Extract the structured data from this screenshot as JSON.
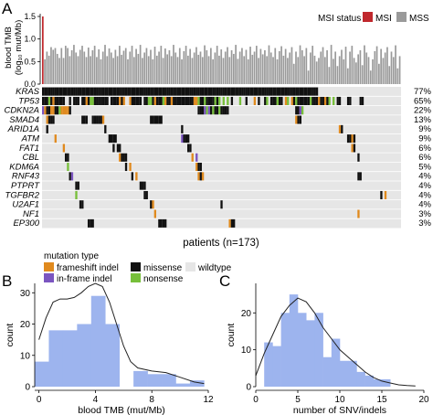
{
  "panel_a": {
    "letter": "A",
    "tmb_ylabel": "blood TMB",
    "tmb_ylabel2": "(log₁₀ mut/Mb)",
    "msi_legend": {
      "title": "MSI status",
      "msi_label": "MSI",
      "mss_label": "MSS"
    },
    "patients_label": "patients (n=173)",
    "legend_title": "mutation type",
    "legend_items": [
      {
        "label": "frameshift indel",
        "color": "#e08a1e"
      },
      {
        "label": "missense",
        "color": "#111111"
      },
      {
        "label": "wildtype",
        "color": "#e6e6e6"
      },
      {
        "label": "in-frame indel",
        "color": "#7b55c0"
      },
      {
        "label": "nonsense",
        "color": "#77bf3a"
      }
    ],
    "colors": {
      "msi": "#c0282d",
      "mss": "#9a9a9a",
      "wildtype": "#e6e6e6",
      "missense": "#111111",
      "frameshift": "#e08a1e",
      "inframe": "#7b55c0",
      "nonsense": "#77bf3a"
    }
  },
  "panel_b": {
    "letter": "B"
  },
  "panel_c": {
    "letter": "C"
  },
  "chart_data": [
    {
      "type": "bar",
      "title": "",
      "xlabel": "",
      "ylabel": "blood TMB (log₁₀ mut/Mb)",
      "ylim": [
        0,
        1.5
      ],
      "yticks": [
        "0.0",
        "0.5",
        "1.0",
        "1.5"
      ],
      "n": 173,
      "msi_count": 1,
      "values": [
        1.5,
        0.55,
        0.72,
        0.63,
        0.82,
        0.76,
        0.8,
        0.67,
        0.58,
        0.8,
        0.58,
        0.85,
        0.8,
        0.62,
        0.75,
        0.87,
        0.7,
        0.62,
        0.76,
        0.85,
        0.72,
        0.6,
        0.81,
        0.62,
        0.75,
        0.85,
        0.6,
        0.77,
        0.55,
        0.72,
        0.87,
        0.62,
        0.79,
        0.7,
        0.58,
        0.76,
        0.62,
        0.85,
        0.65,
        0.74,
        0.8,
        0.55,
        0.72,
        0.85,
        0.6,
        0.78,
        0.67,
        0.87,
        0.58,
        0.7,
        0.8,
        0.62,
        0.76,
        0.55,
        0.83,
        0.63,
        0.72,
        0.85,
        0.58,
        0.79,
        0.66,
        0.75,
        0.62,
        0.87,
        0.7,
        0.6,
        0.8,
        0.55,
        0.73,
        0.85,
        0.63,
        0.78,
        0.58,
        0.7,
        0.82,
        0.65,
        0.72,
        0.6,
        0.86,
        0.75,
        0.62,
        0.8,
        0.55,
        0.7,
        0.85,
        0.63,
        0.77,
        0.58,
        0.72,
        0.82,
        0.6,
        0.75,
        0.67,
        0.87,
        0.56,
        0.72,
        0.8,
        0.62,
        0.76,
        0.55,
        0.83,
        0.65,
        0.72,
        0.85,
        0.58,
        0.78,
        0.66,
        0.75,
        0.62,
        0.86,
        0.7,
        0.6,
        0.8,
        0.55,
        0.73,
        0.84,
        0.63,
        0.78,
        0.58,
        0.7,
        0.82,
        0.45,
        0.72,
        0.6,
        0.86,
        0.75,
        0.62,
        0.8,
        0.3,
        0.7,
        0.85,
        0.63,
        0.5,
        0.58,
        0.72,
        0.82,
        0.6,
        0.75,
        0.38,
        0.87,
        0.56,
        0.72,
        0.4,
        0.62,
        0.76,
        0.55,
        0.83,
        0.35,
        0.72,
        0.85,
        0.58,
        0.48,
        0.66,
        0.75,
        0.42,
        0.86,
        0.7,
        0.6,
        0.3,
        0.55,
        0.73,
        0.84,
        0.45,
        0.78,
        0.58,
        0.7,
        0.82,
        0.4,
        0.72,
        0.6,
        0.86,
        0.35,
        0.62
      ]
    },
    {
      "type": "heatmap",
      "title": "",
      "xlabel": "patients (n=173)",
      "genes": [
        "KRAS",
        "TP53",
        "CDKN2A",
        "SMAD4",
        "ARID1A",
        "ATM",
        "FAT1",
        "CBL",
        "KDM6A",
        "RNF43",
        "PTPRT",
        "TGFBR2",
        "U2AF1",
        "NF1",
        "EP300"
      ],
      "percentages": [
        "77%",
        "65%",
        "22%",
        "13%",
        "9%",
        "9%",
        "6%",
        "6%",
        "5%",
        "4%",
        "4%",
        "4%",
        "4%",
        "3%",
        "3%"
      ],
      "categories": [
        "wildtype",
        "missense",
        "frameshift indel",
        "in-frame indel",
        "nonsense"
      ]
    },
    {
      "type": "bar",
      "title": "",
      "xlabel": "blood TMB (mut/Mb)",
      "ylabel": "count",
      "xlim": [
        -0.3,
        12
      ],
      "ylim": [
        0,
        33
      ],
      "xticks": [
        0,
        4,
        8,
        12
      ],
      "yticks": [
        0,
        10,
        20,
        30
      ],
      "bins": [
        {
          "x0": -0.3,
          "x1": 0.7,
          "y": 8
        },
        {
          "x0": 0.7,
          "x1": 1.7,
          "y": 18
        },
        {
          "x0": 1.7,
          "x1": 2.7,
          "y": 18
        },
        {
          "x0": 2.7,
          "x1": 3.7,
          "y": 20
        },
        {
          "x0": 3.7,
          "x1": 4.7,
          "y": 29
        },
        {
          "x0": 4.7,
          "x1": 5.7,
          "y": 20
        },
        {
          "x0": 5.7,
          "x1": 6.7,
          "y": 0
        },
        {
          "x0": 6.7,
          "x1": 7.7,
          "y": 5
        },
        {
          "x0": 7.7,
          "x1": 8.7,
          "y": 4
        },
        {
          "x0": 8.7,
          "x1": 9.7,
          "y": 4
        },
        {
          "x0": 9.7,
          "x1": 10.7,
          "y": 1
        },
        {
          "x0": 10.7,
          "x1": 11.7,
          "y": 2
        }
      ],
      "density_curve": [
        [
          0,
          15
        ],
        [
          0.5,
          22
        ],
        [
          1,
          27
        ],
        [
          1.5,
          28
        ],
        [
          2,
          28
        ],
        [
          2.5,
          28.5
        ],
        [
          3,
          30
        ],
        [
          3.5,
          32
        ],
        [
          4,
          33
        ],
        [
          4.5,
          32
        ],
        [
          5,
          27
        ],
        [
          5.5,
          20
        ],
        [
          6,
          13
        ],
        [
          6.5,
          8
        ],
        [
          7,
          6
        ],
        [
          8,
          5
        ],
        [
          9,
          4.5
        ],
        [
          10,
          3
        ],
        [
          11,
          1.5
        ],
        [
          11.7,
          1
        ]
      ]
    },
    {
      "type": "bar",
      "title": "",
      "xlabel": "number of SNV/indels",
      "ylabel": "count",
      "xlim": [
        0,
        20
      ],
      "ylim": [
        0,
        28
      ],
      "xticks": [
        0,
        5,
        10,
        15,
        20
      ],
      "yticks": [
        0,
        10,
        20
      ],
      "bins": [
        {
          "x0": 1,
          "x1": 2,
          "y": 12
        },
        {
          "x0": 2,
          "x1": 3,
          "y": 11
        },
        {
          "x0": 3,
          "x1": 4,
          "y": 20
        },
        {
          "x0": 4,
          "x1": 5,
          "y": 25
        },
        {
          "x0": 5,
          "x1": 6,
          "y": 20
        },
        {
          "x0": 6,
          "x1": 7,
          "y": 18
        },
        {
          "x0": 7,
          "x1": 8,
          "y": 20
        },
        {
          "x0": 8,
          "x1": 9,
          "y": 8
        },
        {
          "x0": 9,
          "x1": 10,
          "y": 13
        },
        {
          "x0": 10,
          "x1": 11,
          "y": 7
        },
        {
          "x0": 11,
          "x1": 12,
          "y": 7
        },
        {
          "x0": 12,
          "x1": 13,
          "y": 4
        },
        {
          "x0": 13,
          "x1": 14,
          "y": 3
        },
        {
          "x0": 14,
          "x1": 15,
          "y": 2
        },
        {
          "x0": 15,
          "x1": 16,
          "y": 2
        }
      ],
      "density_curve": [
        [
          0,
          3
        ],
        [
          1,
          9
        ],
        [
          2,
          14
        ],
        [
          3,
          19
        ],
        [
          4,
          22
        ],
        [
          5,
          24
        ],
        [
          6,
          23
        ],
        [
          7,
          20
        ],
        [
          8,
          16
        ],
        [
          9,
          13
        ],
        [
          10,
          10
        ],
        [
          11,
          8
        ],
        [
          12,
          6
        ],
        [
          13,
          4
        ],
        [
          14,
          2.5
        ],
        [
          15,
          1.5
        ],
        [
          16,
          1
        ],
        [
          17,
          0.5
        ],
        [
          18,
          0.3
        ],
        [
          19,
          0.2
        ]
      ]
    }
  ]
}
